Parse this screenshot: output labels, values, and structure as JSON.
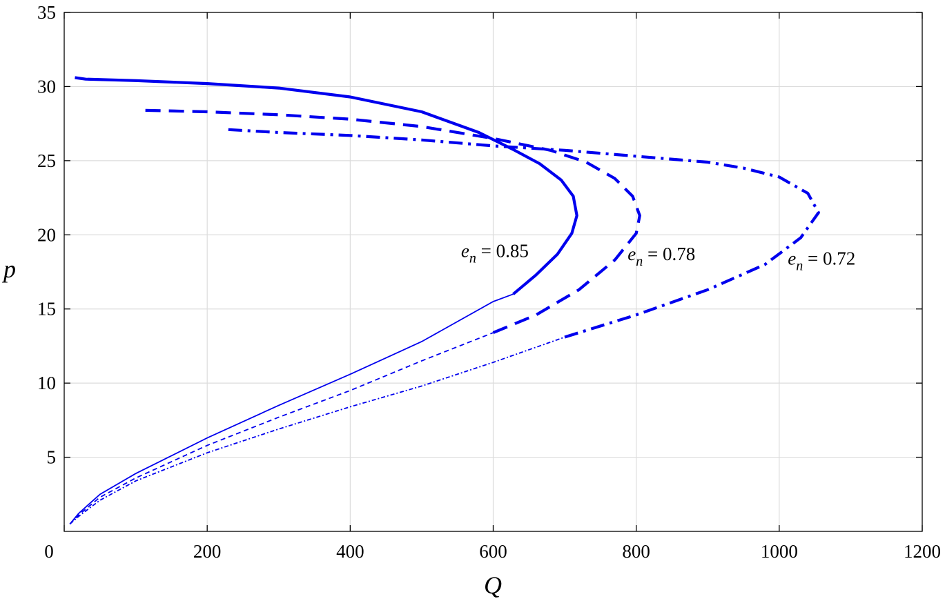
{
  "chart_data": {
    "type": "line",
    "xlabel": "Q",
    "ylabel": "p",
    "xlim": [
      0,
      1200
    ],
    "ylim": [
      0,
      35
    ],
    "xticks": [
      0,
      200,
      400,
      600,
      800,
      1000,
      1200
    ],
    "yticks": [
      5,
      10,
      15,
      20,
      25,
      30,
      35
    ],
    "grid": true,
    "legend": "none",
    "series_color": "#0000ee",
    "annotations": [
      {
        "sym": "e",
        "sub": "n",
        "rest": " = 0.85",
        "x": 555,
        "y": 18.5
      },
      {
        "sym": "e",
        "sub": "n",
        "rest": " = 0.78",
        "x": 788,
        "y": 18.3
      },
      {
        "sym": "e",
        "sub": "n",
        "rest": " = 0.72",
        "x": 1012,
        "y": 18.0
      }
    ],
    "series": [
      {
        "style": "solid",
        "curve": "e_n = 0.85",
        "points": [
          [
            8,
            0.5
          ],
          [
            20,
            1.2
          ],
          [
            50,
            2.5
          ],
          [
            100,
            3.9
          ],
          [
            200,
            6.3
          ],
          [
            300,
            8.5
          ],
          [
            400,
            10.6
          ],
          [
            500,
            12.8
          ],
          [
            600,
            15.5
          ],
          [
            628,
            16.0
          ],
          [
            660,
            17.3
          ],
          [
            690,
            18.7
          ],
          [
            710,
            20.1
          ],
          [
            717,
            21.3
          ],
          [
            712,
            22.6
          ],
          [
            695,
            23.7
          ],
          [
            665,
            24.8
          ],
          [
            630,
            25.7
          ],
          [
            580,
            26.9
          ],
          [
            500,
            28.3
          ],
          [
            400,
            29.3
          ],
          [
            300,
            29.9
          ],
          [
            200,
            30.2
          ],
          [
            100,
            30.4
          ],
          [
            30,
            30.5
          ],
          [
            15,
            30.6
          ]
        ]
      },
      {
        "style": "dashed",
        "curve": "e_n = 0.78",
        "points": [
          [
            8,
            0.5
          ],
          [
            20,
            1.1
          ],
          [
            50,
            2.3
          ],
          [
            100,
            3.6
          ],
          [
            200,
            5.8
          ],
          [
            300,
            7.7
          ],
          [
            400,
            9.5
          ],
          [
            500,
            11.5
          ],
          [
            600,
            13.4
          ],
          [
            660,
            14.6
          ],
          [
            720,
            16.3
          ],
          [
            770,
            18.3
          ],
          [
            800,
            20.1
          ],
          [
            805,
            21.3
          ],
          [
            795,
            22.6
          ],
          [
            770,
            23.8
          ],
          [
            730,
            24.9
          ],
          [
            680,
            25.7
          ],
          [
            600,
            26.5
          ],
          [
            500,
            27.3
          ],
          [
            400,
            27.8
          ],
          [
            300,
            28.1
          ],
          [
            200,
            28.3
          ],
          [
            112,
            28.4
          ]
        ]
      },
      {
        "style": "dashdot",
        "curve": "e_n = 0.72",
        "points": [
          [
            8,
            0.5
          ],
          [
            20,
            1.0
          ],
          [
            50,
            2.1
          ],
          [
            100,
            3.4
          ],
          [
            200,
            5.3
          ],
          [
            300,
            6.9
          ],
          [
            400,
            8.4
          ],
          [
            500,
            9.8
          ],
          [
            600,
            11.4
          ],
          [
            700,
            13.1
          ],
          [
            800,
            14.6
          ],
          [
            900,
            16.3
          ],
          [
            980,
            18.0
          ],
          [
            1030,
            19.8
          ],
          [
            1055,
            21.5
          ],
          [
            1040,
            22.8
          ],
          [
            1000,
            23.9
          ],
          [
            950,
            24.5
          ],
          [
            900,
            24.9
          ],
          [
            800,
            25.3
          ],
          [
            700,
            25.7
          ],
          [
            600,
            26.0
          ],
          [
            500,
            26.4
          ],
          [
            400,
            26.7
          ],
          [
            300,
            26.9
          ],
          [
            228,
            27.1
          ]
        ]
      }
    ]
  }
}
